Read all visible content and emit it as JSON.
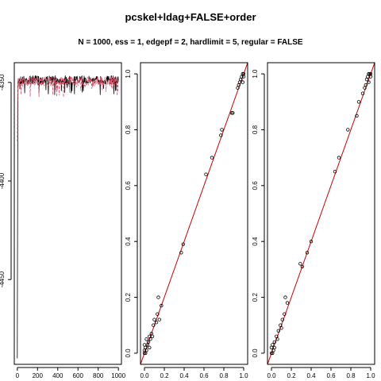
{
  "title": "pcskel+ldag+FALSE+order",
  "subtitle": "N = 1000, ess = 1, edgepf = 2, hardlimit = 5, regular = FALSE",
  "chart_data": [
    {
      "type": "line",
      "panel": "trace",
      "xlim": [
        -30,
        1030
      ],
      "ylim": [
        -4493,
        -4340
      ],
      "x_ticks": [
        0,
        200,
        400,
        600,
        800,
        1000
      ],
      "x_tick_labels": [
        "0",
        "200",
        "400",
        "600",
        "800",
        "1000"
      ],
      "y_ticks": [
        -4350,
        -4400,
        -4450
      ],
      "y_tick_labels": [
        "-4350",
        "-4400",
        "-4450"
      ],
      "series": [
        {
          "color": "#000000",
          "start": -4490,
          "level": -4346.5,
          "spread": 4.5,
          "dash": false
        },
        {
          "color": "#DF536B",
          "start": -4380,
          "level": -4347.0,
          "spread": 5.0,
          "dash": true
        }
      ]
    },
    {
      "type": "scatter",
      "panel": "pairs-1",
      "xlim": [
        -0.04,
        1.04
      ],
      "ylim": [
        -0.04,
        1.04
      ],
      "x_ticks": [
        0,
        0.2,
        0.4,
        0.6,
        0.8,
        1.0
      ],
      "x_tick_labels": [
        "0.0",
        "0.2",
        "0.4",
        "0.6",
        "0.8",
        "1.0"
      ],
      "y_ticks": [
        0,
        0.2,
        0.4,
        0.6,
        0.8,
        1.0
      ],
      "y_tick_labels": [
        "0.0",
        "0.2",
        "0.4",
        "0.6",
        "0.8",
        "1.0"
      ],
      "reference_line": {
        "from": [
          -0.04,
          -0.04
        ],
        "to": [
          1.04,
          1.04
        ],
        "color": "#CC0000"
      },
      "points": [
        [
          0.0,
          0.0
        ],
        [
          0.0,
          0.01
        ],
        [
          0.01,
          0.0
        ],
        [
          0.01,
          0.02
        ],
        [
          0.02,
          0.01
        ],
        [
          0.0,
          0.03
        ],
        [
          0.03,
          0.03
        ],
        [
          0.02,
          0.05
        ],
        [
          0.04,
          0.04
        ],
        [
          0.05,
          0.02
        ],
        [
          0.05,
          0.06
        ],
        [
          0.06,
          0.05
        ],
        [
          0.07,
          0.07
        ],
        [
          0.08,
          0.06
        ],
        [
          0.09,
          0.1
        ],
        [
          0.1,
          0.12
        ],
        [
          0.12,
          0.11
        ],
        [
          0.13,
          0.14
        ],
        [
          0.14,
          0.2
        ],
        [
          0.15,
          0.12
        ],
        [
          0.17,
          0.17
        ],
        [
          0.37,
          0.36
        ],
        [
          0.39,
          0.39
        ],
        [
          0.62,
          0.64
        ],
        [
          0.68,
          0.7
        ],
        [
          0.77,
          0.78
        ],
        [
          0.78,
          0.8
        ],
        [
          0.88,
          0.86
        ],
        [
          0.89,
          0.86
        ],
        [
          0.94,
          0.95
        ],
        [
          0.95,
          0.96
        ],
        [
          0.96,
          0.97
        ],
        [
          0.97,
          0.98
        ],
        [
          0.98,
          0.99
        ],
        [
          0.99,
          1.0
        ],
        [
          1.0,
          0.99
        ],
        [
          0.99,
          0.97
        ],
        [
          1.0,
          1.0
        ]
      ]
    },
    {
      "type": "scatter",
      "panel": "pairs-2",
      "xlim": [
        -0.04,
        1.04
      ],
      "ylim": [
        -0.04,
        1.04
      ],
      "x_ticks": [
        0,
        0.2,
        0.4,
        0.6,
        0.8,
        1.0
      ],
      "x_tick_labels": [
        "0.0",
        "0.2",
        "0.4",
        "0.6",
        "0.8",
        "1.0"
      ],
      "y_ticks": [
        0,
        0.2,
        0.4,
        0.6,
        0.8,
        1.0
      ],
      "y_tick_labels": [
        "0.0",
        "0.2",
        "0.4",
        "0.6",
        "0.8",
        "1.0"
      ],
      "reference_line": {
        "from": [
          -0.04,
          -0.04
        ],
        "to": [
          1.04,
          1.04
        ],
        "color": "#CC0000"
      },
      "points": [
        [
          0.0,
          0.0
        ],
        [
          0.01,
          0.0
        ],
        [
          0.0,
          0.02
        ],
        [
          0.02,
          0.01
        ],
        [
          0.01,
          0.03
        ],
        [
          0.03,
          0.02
        ],
        [
          0.03,
          0.04
        ],
        [
          0.05,
          0.06
        ],
        [
          0.06,
          0.05
        ],
        [
          0.07,
          0.08
        ],
        [
          0.09,
          0.1
        ],
        [
          0.1,
          0.09
        ],
        [
          0.11,
          0.12
        ],
        [
          0.13,
          0.14
        ],
        [
          0.14,
          0.2
        ],
        [
          0.16,
          0.18
        ],
        [
          0.29,
          0.32
        ],
        [
          0.31,
          0.31
        ],
        [
          0.36,
          0.36
        ],
        [
          0.4,
          0.4
        ],
        [
          0.64,
          0.65
        ],
        [
          0.68,
          0.7
        ],
        [
          0.77,
          0.8
        ],
        [
          0.86,
          0.85
        ],
        [
          0.88,
          0.9
        ],
        [
          0.92,
          0.93
        ],
        [
          0.94,
          0.95
        ],
        [
          0.95,
          0.96
        ],
        [
          0.96,
          0.98
        ],
        [
          0.97,
          0.99
        ],
        [
          0.98,
          0.97
        ],
        [
          0.99,
          1.0
        ],
        [
          1.0,
          0.99
        ],
        [
          1.0,
          1.0
        ],
        [
          0.98,
          1.0
        ]
      ]
    }
  ]
}
